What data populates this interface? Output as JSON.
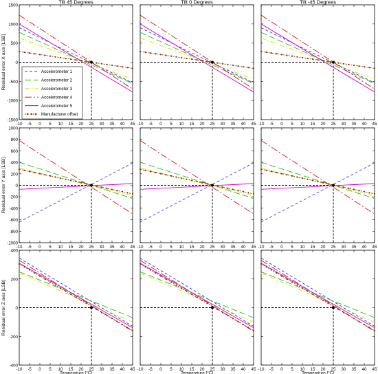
{
  "figure": {
    "x_axis_title": "Temperature [°C]",
    "column_titles": [
      "Tilt 45 Degrees",
      "Tilt 0 Degrees",
      "Tilt -45 Degrees"
    ],
    "row_titles": [
      "Residual error X axis [LSB]",
      "Residual error Y axis [LSB]",
      "Residual error Z axis [LSB]"
    ]
  },
  "legend": {
    "entries": [
      {
        "label": "Accelerometer 1",
        "color": "#3333cc",
        "dash": "4,3"
      },
      {
        "label": "Accelerometer 2",
        "color": "#22bb22",
        "dash": "9,4"
      },
      {
        "label": "Accelerometer 3",
        "color": "#dddd00",
        "dash": "7,3,1.5,3"
      },
      {
        "label": "Accelerometer 4",
        "color": "#cc1111",
        "dash": "10,3,2,3"
      },
      {
        "label": "Accelerometer 5",
        "color": "#cc00cc",
        "dash": ""
      },
      {
        "label": "Manufacturer offset",
        "color": "#883300",
        "dash": "2,2",
        "marker": "dot"
      }
    ]
  },
  "chart_data": [
    {
      "type": "line",
      "title": "Tilt 45 Degrees",
      "xlabel": "",
      "ylabel": "Residual error X axis [LSB]",
      "xlim": [
        -10,
        45
      ],
      "ylim": [
        -1500,
        1500
      ],
      "xticks": [
        "-10",
        "-5",
        "0",
        "5",
        "10",
        "15",
        "20",
        "25",
        "30",
        "35",
        "40",
        "45"
      ],
      "yticks": [
        "-1500",
        "-1000",
        "-500",
        "0",
        "500",
        "1000",
        "1500"
      ],
      "reference_point": [
        25,
        0
      ],
      "series": [
        {
          "name": "Accelerometer 1",
          "x": [
            -10,
            45
          ],
          "y": [
            900,
            -540
          ]
        },
        {
          "name": "Accelerometer 2",
          "x": [
            -10,
            45
          ],
          "y": [
            780,
            -560
          ]
        },
        {
          "name": "Accelerometer 3",
          "x": [
            -10,
            45
          ],
          "y": [
            630,
            -440
          ]
        },
        {
          "name": "Accelerometer 4",
          "x": [
            -10,
            45
          ],
          "y": [
            1230,
            -700
          ]
        },
        {
          "name": "Accelerometer 5",
          "x": [
            -10,
            45
          ],
          "y": [
            1000,
            -780
          ]
        },
        {
          "name": "Manufacturer offset",
          "x": [
            -10,
            45
          ],
          "y": [
            280,
            -160
          ]
        }
      ]
    },
    {
      "type": "line",
      "title": "Tilt 0 Degrees",
      "xlabel": "",
      "ylabel": "",
      "xlim": [
        -10,
        45
      ],
      "ylim": [
        -1500,
        1500
      ],
      "xticks": [
        "-10",
        "-5",
        "0",
        "5",
        "10",
        "15",
        "20",
        "25",
        "30",
        "35",
        "40",
        "45"
      ],
      "yticks": [
        "-1500",
        "-1000",
        "-500",
        "0",
        "500",
        "1000",
        "1500"
      ],
      "reference_point": [
        25,
        0
      ],
      "series": [
        {
          "name": "Accelerometer 1",
          "x": [
            -10,
            45
          ],
          "y": [
            900,
            -540
          ]
        },
        {
          "name": "Accelerometer 2",
          "x": [
            -10,
            45
          ],
          "y": [
            780,
            -560
          ]
        },
        {
          "name": "Accelerometer 3",
          "x": [
            -10,
            45
          ],
          "y": [
            630,
            -440
          ]
        },
        {
          "name": "Accelerometer 4",
          "x": [
            -10,
            45
          ],
          "y": [
            1230,
            -700
          ]
        },
        {
          "name": "Accelerometer 5",
          "x": [
            -10,
            45
          ],
          "y": [
            1000,
            -780
          ]
        },
        {
          "name": "Manufacturer offset",
          "x": [
            -10,
            45
          ],
          "y": [
            280,
            -160
          ]
        }
      ]
    },
    {
      "type": "line",
      "title": "Tilt -45 Degrees",
      "xlabel": "",
      "ylabel": "",
      "xlim": [
        -10,
        45
      ],
      "ylim": [
        -1500,
        1500
      ],
      "xticks": [
        "-10",
        "-5",
        "0",
        "5",
        "10",
        "15",
        "20",
        "25",
        "30",
        "35",
        "40",
        "45"
      ],
      "yticks": [
        "-1500",
        "-1000",
        "-500",
        "0",
        "500",
        "1000",
        "1500"
      ],
      "reference_point": [
        25,
        0
      ],
      "series": [
        {
          "name": "Accelerometer 1",
          "x": [
            -10,
            45
          ],
          "y": [
            900,
            -540
          ]
        },
        {
          "name": "Accelerometer 2",
          "x": [
            -10,
            45
          ],
          "y": [
            780,
            -560
          ]
        },
        {
          "name": "Accelerometer 3",
          "x": [
            -10,
            45
          ],
          "y": [
            630,
            -440
          ]
        },
        {
          "name": "Accelerometer 4",
          "x": [
            -10,
            45
          ],
          "y": [
            1230,
            -700
          ]
        },
        {
          "name": "Accelerometer 5",
          "x": [
            -10,
            45
          ],
          "y": [
            1000,
            -780
          ]
        },
        {
          "name": "Manufacturer offset",
          "x": [
            -10,
            45
          ],
          "y": [
            280,
            -160
          ]
        }
      ]
    },
    {
      "type": "line",
      "title": "",
      "xlabel": "",
      "ylabel": "Residual error Y axis [LSB]",
      "xlim": [
        -10,
        45
      ],
      "ylim": [
        -1000,
        1000
      ],
      "xticks": [
        "-10",
        "-5",
        "0",
        "5",
        "10",
        "15",
        "20",
        "25",
        "30",
        "35",
        "40",
        "45"
      ],
      "yticks": [
        "-1000",
        "-800",
        "-600",
        "-400",
        "-200",
        "0",
        "200",
        "400",
        "600",
        "800",
        "1000"
      ],
      "reference_point": [
        25,
        0
      ],
      "series": [
        {
          "name": "Accelerometer 1",
          "x": [
            -10,
            45
          ],
          "y": [
            -640,
            390
          ]
        },
        {
          "name": "Accelerometer 2",
          "x": [
            -10,
            45
          ],
          "y": [
            400,
            -230
          ]
        },
        {
          "name": "Accelerometer 3",
          "x": [
            -10,
            45
          ],
          "y": [
            300,
            -180
          ]
        },
        {
          "name": "Accelerometer 4",
          "x": [
            -10,
            45
          ],
          "y": [
            780,
            -500
          ]
        },
        {
          "name": "Accelerometer 5",
          "x": [
            -10,
            45
          ],
          "y": [
            -70,
            30
          ]
        },
        {
          "name": "Manufacturer offset",
          "x": [
            -10,
            45
          ],
          "y": [
            280,
            -150
          ]
        }
      ]
    },
    {
      "type": "line",
      "title": "",
      "xlabel": "",
      "ylabel": "",
      "xlim": [
        -10,
        45
      ],
      "ylim": [
        -1000,
        1000
      ],
      "xticks": [
        "-10",
        "-5",
        "0",
        "5",
        "10",
        "15",
        "20",
        "25",
        "30",
        "35",
        "40",
        "45"
      ],
      "yticks": [
        "-1000",
        "-800",
        "-600",
        "-400",
        "-200",
        "0",
        "200",
        "400",
        "600",
        "800",
        "1000"
      ],
      "reference_point": [
        25,
        0
      ],
      "series": [
        {
          "name": "Accelerometer 1",
          "x": [
            -10,
            45
          ],
          "y": [
            -640,
            390
          ]
        },
        {
          "name": "Accelerometer 2",
          "x": [
            -10,
            45
          ],
          "y": [
            400,
            -230
          ]
        },
        {
          "name": "Accelerometer 3",
          "x": [
            -10,
            45
          ],
          "y": [
            300,
            -180
          ]
        },
        {
          "name": "Accelerometer 4",
          "x": [
            -10,
            45
          ],
          "y": [
            780,
            -500
          ]
        },
        {
          "name": "Accelerometer 5",
          "x": [
            -10,
            45
          ],
          "y": [
            -70,
            30
          ]
        },
        {
          "name": "Manufacturer offset",
          "x": [
            -10,
            45
          ],
          "y": [
            280,
            -150
          ]
        }
      ]
    },
    {
      "type": "line",
      "title": "",
      "xlabel": "",
      "ylabel": "",
      "xlim": [
        -10,
        45
      ],
      "ylim": [
        -1000,
        1000
      ],
      "xticks": [
        "-10",
        "-5",
        "0",
        "5",
        "10",
        "15",
        "20",
        "25",
        "30",
        "35",
        "40",
        "45"
      ],
      "yticks": [
        "-1000",
        "-800",
        "-600",
        "-400",
        "-200",
        "0",
        "200",
        "400",
        "600",
        "800",
        "1000"
      ],
      "reference_point": [
        25,
        0
      ],
      "series": [
        {
          "name": "Accelerometer 1",
          "x": [
            -10,
            45
          ],
          "y": [
            -640,
            390
          ]
        },
        {
          "name": "Accelerometer 2",
          "x": [
            -10,
            45
          ],
          "y": [
            400,
            -230
          ]
        },
        {
          "name": "Accelerometer 3",
          "x": [
            -10,
            45
          ],
          "y": [
            300,
            -180
          ]
        },
        {
          "name": "Accelerometer 4",
          "x": [
            -10,
            45
          ],
          "y": [
            780,
            -500
          ]
        },
        {
          "name": "Accelerometer 5",
          "x": [
            -10,
            45
          ],
          "y": [
            -70,
            30
          ]
        },
        {
          "name": "Manufacturer offset",
          "x": [
            -10,
            45
          ],
          "y": [
            280,
            -150
          ]
        }
      ]
    },
    {
      "type": "line",
      "title": "",
      "xlabel": "Temperature [°C]",
      "ylabel": "Residual error Z axis [LSB]",
      "xlim": [
        -10,
        45
      ],
      "ylim": [
        -400,
        400
      ],
      "xticks": [
        "-10",
        "-5",
        "0",
        "5",
        "10",
        "15",
        "20",
        "25",
        "30",
        "35",
        "40",
        "45"
      ],
      "yticks": [
        "-400",
        "-200",
        "0",
        "200",
        "400"
      ],
      "reference_point": [
        25,
        0
      ],
      "series": [
        {
          "name": "Accelerometer 1",
          "x": [
            -10,
            45
          ],
          "y": [
            345,
            -130
          ]
        },
        {
          "name": "Accelerometer 2",
          "x": [
            -10,
            45
          ],
          "y": [
            250,
            -70
          ]
        },
        {
          "name": "Accelerometer 3",
          "x": [
            -10,
            45
          ],
          "y": [
            240,
            -100
          ]
        },
        {
          "name": "Accelerometer 4",
          "x": [
            -10,
            45
          ],
          "y": [
            330,
            -165
          ]
        },
        {
          "name": "Accelerometer 5",
          "x": [
            -10,
            45
          ],
          "y": [
            310,
            -140
          ]
        },
        {
          "name": "Manufacturer offset",
          "x": [
            -10,
            45
          ],
          "y": [
            305,
            -160
          ]
        }
      ]
    },
    {
      "type": "line",
      "title": "",
      "xlabel": "Temperature [°C]",
      "ylabel": "",
      "xlim": [
        -10,
        45
      ],
      "ylim": [
        -400,
        400
      ],
      "xticks": [
        "-10",
        "-5",
        "0",
        "5",
        "10",
        "15",
        "20",
        "25",
        "30",
        "35",
        "40",
        "45"
      ],
      "yticks": [
        "-400",
        "-200",
        "0",
        "200",
        "400"
      ],
      "reference_point": [
        25,
        0
      ],
      "series": [
        {
          "name": "Accelerometer 1",
          "x": [
            -10,
            45
          ],
          "y": [
            345,
            -130
          ]
        },
        {
          "name": "Accelerometer 2",
          "x": [
            -10,
            45
          ],
          "y": [
            250,
            -70
          ]
        },
        {
          "name": "Accelerometer 3",
          "x": [
            -10,
            45
          ],
          "y": [
            240,
            -100
          ]
        },
        {
          "name": "Accelerometer 4",
          "x": [
            -10,
            45
          ],
          "y": [
            330,
            -165
          ]
        },
        {
          "name": "Accelerometer 5",
          "x": [
            -10,
            45
          ],
          "y": [
            310,
            -140
          ]
        },
        {
          "name": "Manufacturer offset",
          "x": [
            -10,
            45
          ],
          "y": [
            305,
            -160
          ]
        }
      ]
    },
    {
      "type": "line",
      "title": "",
      "xlabel": "Temperature [°C]",
      "ylabel": "",
      "xlim": [
        -10,
        45
      ],
      "ylim": [
        -400,
        400
      ],
      "xticks": [
        "-10",
        "-5",
        "0",
        "5",
        "10",
        "15",
        "20",
        "25",
        "30",
        "35",
        "40",
        "45"
      ],
      "yticks": [
        "-400",
        "-200",
        "0",
        "200",
        "400"
      ],
      "reference_point": [
        25,
        0
      ],
      "series": [
        {
          "name": "Accelerometer 1",
          "x": [
            -10,
            45
          ],
          "y": [
            345,
            -130
          ]
        },
        {
          "name": "Accelerometer 2",
          "x": [
            -10,
            45
          ],
          "y": [
            250,
            -70
          ]
        },
        {
          "name": "Accelerometer 3",
          "x": [
            -10,
            45
          ],
          "y": [
            240,
            -100
          ]
        },
        {
          "name": "Accelerometer 4",
          "x": [
            -10,
            45
          ],
          "y": [
            330,
            -165
          ]
        },
        {
          "name": "Accelerometer 5",
          "x": [
            -10,
            45
          ],
          "y": [
            310,
            -140
          ]
        },
        {
          "name": "Manufacturer offset",
          "x": [
            -10,
            45
          ],
          "y": [
            305,
            -160
          ]
        }
      ]
    }
  ]
}
